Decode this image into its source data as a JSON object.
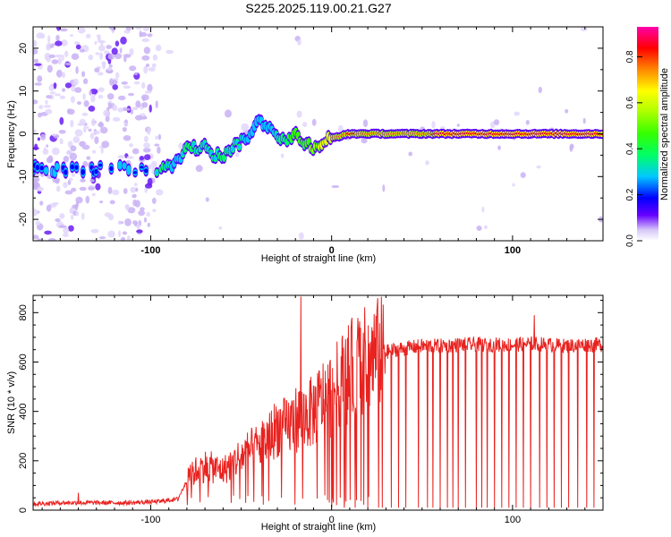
{
  "title": "S225.2025.119.00.21.G27",
  "chart_data": [
    {
      "type": "heatmap",
      "name": "spectrogram",
      "xlabel": "Height of straight line (km)",
      "ylabel": "Frequency (Hz)",
      "xlim": [
        -165,
        150
      ],
      "ylim": [
        -25,
        25
      ],
      "xticks": [
        -100,
        0,
        100
      ],
      "yticks": [
        -20,
        -10,
        0,
        10,
        20
      ],
      "colorbar": {
        "label": "Normalized spectral amplitude",
        "range": [
          0,
          0.93
        ],
        "ticks": [
          0.0,
          0.2,
          0.4,
          0.6,
          0.8
        ],
        "placement": "right"
      },
      "ridge": {
        "x": [
          -165,
          -155,
          -150,
          -140,
          -125,
          -115,
          -105,
          -100,
          -95,
          -90,
          -85,
          -80,
          -75,
          -70,
          -65,
          -60,
          -55,
          -50,
          -45,
          -40,
          -35,
          -30,
          -25,
          -20,
          -15,
          -10,
          -5,
          0,
          5,
          10,
          20,
          40,
          60,
          80,
          100,
          120,
          150
        ],
        "y": [
          -8,
          -9,
          -8,
          -8.5,
          -8,
          -8,
          -8.5,
          -8,
          -8.5,
          -8,
          -6,
          -3,
          -3.5,
          -2,
          -5,
          -5,
          -3,
          -2,
          0,
          3,
          2,
          0,
          -2,
          0,
          -2,
          -3,
          -2,
          -1,
          -0.5,
          0,
          0,
          0,
          0,
          0,
          0,
          0,
          0
        ],
        "amplitude": [
          0.25,
          0.3,
          0.28,
          0.25,
          0.25,
          0.3,
          0.25,
          0.3,
          0.4,
          0.35,
          0.3,
          0.4,
          0.35,
          0.35,
          0.35,
          0.4,
          0.35,
          0.35,
          0.3,
          0.3,
          0.3,
          0.35,
          0.45,
          0.55,
          0.5,
          0.6,
          0.7,
          0.75,
          0.8,
          0.85,
          0.8,
          0.8,
          0.85,
          0.85,
          0.9,
          0.85,
          0.85
        ]
      }
    },
    {
      "type": "line",
      "name": "snr",
      "xlabel": "Height of straight line (km)",
      "ylabel": "SNR (10 * v/v)",
      "xlim": [
        -165,
        150
      ],
      "ylim": [
        0,
        870
      ],
      "xticks": [
        -100,
        0,
        100
      ],
      "yticks": [
        0,
        200,
        400,
        600,
        800
      ],
      "series": [
        {
          "color": "#e8221f",
          "x": [
            -165,
            -150,
            -130,
            -110,
            -95,
            -85,
            -80,
            -75,
            -70,
            -65,
            -60,
            -55,
            -50,
            -45,
            -40,
            -35,
            -30,
            -25,
            -20,
            -15,
            -10,
            -5,
            0,
            5,
            10,
            15,
            20,
            25,
            30,
            35,
            40,
            50,
            60,
            70,
            80,
            90,
            100,
            110,
            120,
            130,
            140,
            150
          ],
          "y": [
            25,
            30,
            30,
            30,
            35,
            45,
            120,
            160,
            180,
            170,
            160,
            190,
            220,
            240,
            260,
            290,
            340,
            330,
            370,
            380,
            400,
            450,
            470,
            520,
            560,
            590,
            610,
            630,
            640,
            650,
            655,
            665,
            665,
            670,
            670,
            670,
            670,
            675,
            670,
            665,
            670,
            670
          ],
          "spikes": [
            {
              "x": -140,
              "y": 70
            },
            {
              "x": -17,
              "y": 865
            },
            {
              "x": 112,
              "y": 790
            }
          ],
          "dropouts": [
            0,
            7,
            13,
            20,
            26,
            28,
            33,
            37,
            41,
            48,
            53,
            56,
            60,
            64,
            67,
            70,
            74,
            80,
            83,
            86,
            90,
            94,
            98,
            102,
            106,
            110,
            115,
            119,
            123,
            127,
            131,
            136,
            141,
            145
          ]
        }
      ]
    }
  ]
}
